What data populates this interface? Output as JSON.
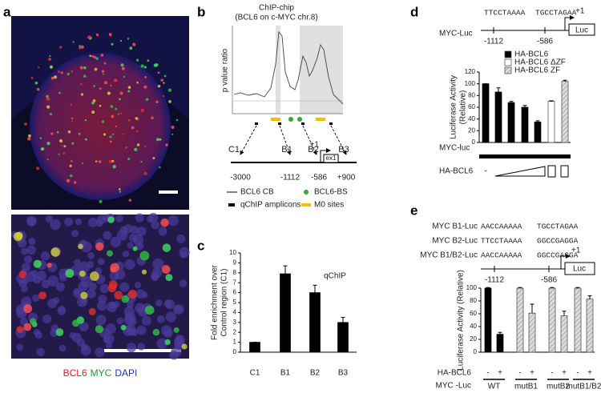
{
  "panel_labels": [
    "a",
    "b",
    "c",
    "d",
    "e"
  ],
  "panel_a": {
    "legend": [
      "BCL6",
      "MYC",
      "DAPI"
    ]
  },
  "panel_b": {
    "title": "ChIP-chip",
    "subtitle": "(BCL6 on c-MYC chr.8)",
    "y_label": "p value ratio",
    "regions": [
      "C1",
      "B1",
      "B2",
      "B3"
    ],
    "tss": "+1",
    "exon": "ex1",
    "positions": [
      "-3000",
      "-1112",
      "-586",
      "+900"
    ],
    "legend": [
      "BCL6 CB",
      "qChIP amplicons",
      "BCL6-BS",
      "M0 sites"
    ]
  },
  "chart_data": [
    {
      "type": "bar",
      "y_label": [
        "Fold enrichment over",
        "Control region (C1)"
      ],
      "annotation": "qChIP",
      "categories": [
        "C1",
        "B1",
        "B2",
        "B3"
      ],
      "values": [
        1,
        7.9,
        6,
        3
      ],
      "errors": [
        0,
        0.8,
        0.75,
        0.5
      ],
      "color": "#000000",
      "ylim": [
        0,
        10
      ],
      "yticks": [
        0,
        1,
        2,
        3,
        4,
        5,
        6,
        7,
        8,
        9,
        10
      ]
    },
    {
      "type": "bar",
      "construct": {
        "name": "MYC-Luc",
        "sites": [
          "TTCCTAAAA",
          "TGCCTAGAA"
        ],
        "positions": [
          "-1112",
          "-586"
        ],
        "tss": "+1",
        "reporter": "Luc"
      },
      "y_label": [
        "Luciferase Activity",
        "(Relative)"
      ],
      "ylim": [
        0,
        120
      ],
      "yticks": [
        0,
        20,
        40,
        60,
        80,
        100,
        120
      ],
      "categories": [
        null,
        null,
        null,
        null,
        null,
        null,
        null
      ],
      "series": [
        {
          "name": "HA-BCL6",
          "color": "#000000",
          "values": [
            100,
            86,
            68,
            60,
            35,
            null,
            null
          ],
          "errors": [
            0,
            7,
            2,
            3,
            2,
            null,
            null
          ]
        },
        {
          "name": "HA-BCL6 ΔZF",
          "color": "#ffffff",
          "values": [
            null,
            null,
            null,
            null,
            null,
            70,
            null
          ],
          "errors": [
            null,
            null,
            null,
            null,
            null,
            1,
            null
          ]
        },
        {
          "name": "HA-BCL6 ZF",
          "color": "#d8d8d8",
          "hatch": true,
          "values": [
            null,
            null,
            null,
            null,
            null,
            null,
            104
          ],
          "errors": [
            null,
            null,
            null,
            null,
            null,
            null,
            2
          ]
        }
      ],
      "construct_label": "MYC-luc",
      "treatment_label": "HA-BCL6",
      "treatment_levels": [
        "-"
      ]
    },
    {
      "type": "bar",
      "constructs": [
        {
          "name": "MYC B1-Luc",
          "sites": [
            "AACCAAAAA",
            "TGCCTAGAA"
          ]
        },
        {
          "name": "MYC B2-Luc",
          "sites": [
            "TTCCTAAAA",
            "GGCCGAGGA"
          ]
        },
        {
          "name": "MYC B1/B2-Luc",
          "sites": [
            "AACCAAAAA",
            "GGCCGAGGA"
          ]
        }
      ],
      "positions": [
        "-1112",
        "-586"
      ],
      "tss": "+1",
      "reporter": "Luc",
      "y_label": "Luciferase Activity (Relative)",
      "ylim": [
        0,
        100
      ],
      "yticks": [
        0,
        20,
        40,
        60,
        80,
        100
      ],
      "categories": [
        "-",
        "+",
        "-",
        "+",
        "-",
        "+",
        "-",
        "+"
      ],
      "groups": [
        "WT",
        "mutB1",
        "mutB2",
        "mutB1/B2"
      ],
      "series": [
        {
          "color": "#000000",
          "values": [
            100,
            28,
            null,
            null,
            null,
            null,
            null,
            null
          ],
          "errors": [
            1,
            3,
            null,
            null,
            null,
            null,
            null,
            null
          ]
        },
        {
          "color": "#d8d8d8",
          "hatch": true,
          "values": [
            null,
            null,
            100,
            61,
            100,
            57,
            100,
            83
          ],
          "errors": [
            null,
            null,
            1,
            14,
            1,
            7,
            1,
            5
          ]
        }
      ],
      "treatment_label": "HA-BCL6",
      "construct_label": "MYC -Luc"
    }
  ]
}
